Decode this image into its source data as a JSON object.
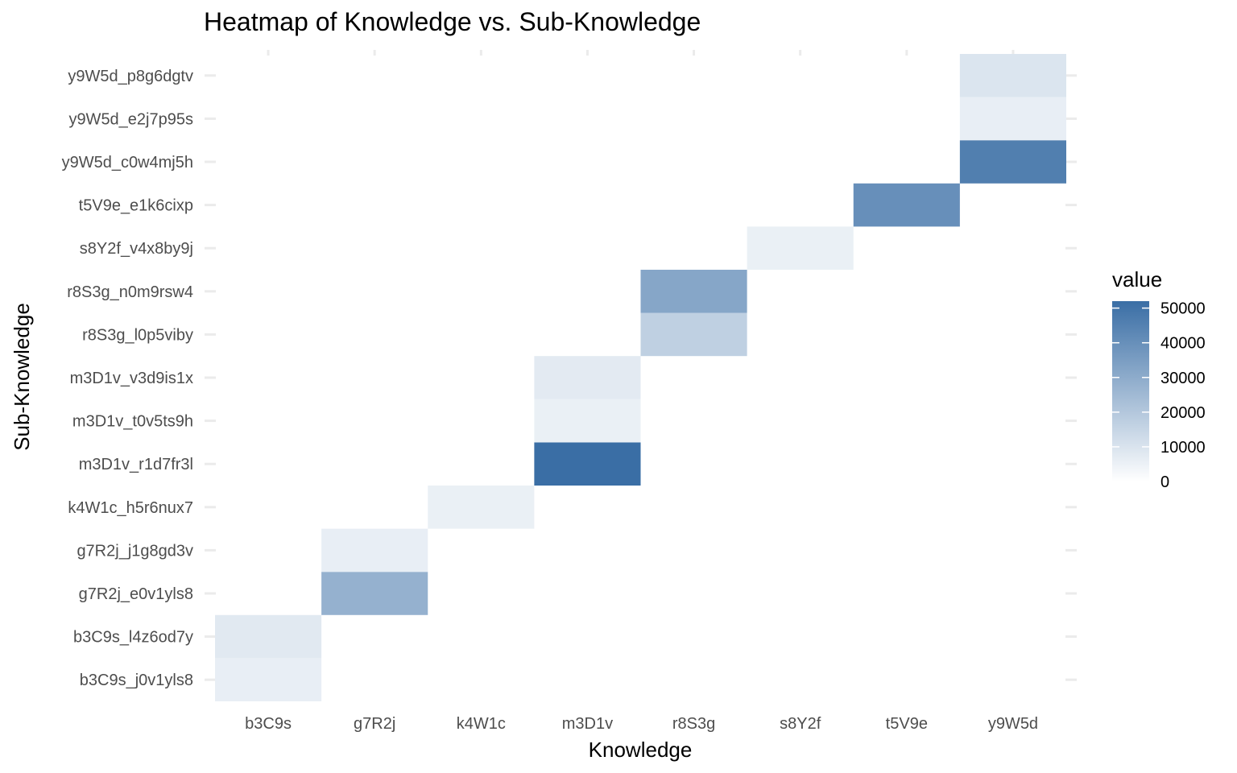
{
  "chart_data": {
    "type": "heatmap",
    "title": "Heatmap of Knowledge vs. Sub-Knowledge",
    "xlabel": "Knowledge",
    "ylabel": "Sub-Knowledge",
    "x_categories": [
      "b3C9s",
      "g7R2j",
      "k4W1c",
      "m3D1v",
      "r8S3g",
      "s8Y2f",
      "t5V9e",
      "y9W5d"
    ],
    "y_categories": [
      "b3C9s_j0v1yls8",
      "b3C9s_l4z6od7y",
      "g7R2j_e0v1yls8",
      "g7R2j_j1g8gd3v",
      "k4W1c_h5r6nux7",
      "m3D1v_r1d7fr3l",
      "m3D1v_t0v5ts9h",
      "m3D1v_v3d9is1x",
      "r8S3g_l0p5viby",
      "r8S3g_n0m9rsw4",
      "s8Y2f_v4x8by9j",
      "t5V9e_e1k6cixp",
      "y9W5d_c0w4mj5h",
      "y9W5d_e2j7p95s",
      "y9W5d_p8g6dgtv"
    ],
    "cells": [
      {
        "x": "b3C9s",
        "y": "b3C9s_j0v1yls8",
        "value": 6000
      },
      {
        "x": "b3C9s",
        "y": "b3C9s_l4z6od7y",
        "value": 8000
      },
      {
        "x": "g7R2j",
        "y": "g7R2j_e0v1yls8",
        "value": 28000
      },
      {
        "x": "g7R2j",
        "y": "g7R2j_j1g8gd3v",
        "value": 6000
      },
      {
        "x": "k4W1c",
        "y": "k4W1c_h5r6nux7",
        "value": 5500
      },
      {
        "x": "m3D1v",
        "y": "m3D1v_r1d7fr3l",
        "value": 52000
      },
      {
        "x": "m3D1v",
        "y": "m3D1v_t0v5ts9h",
        "value": 5500
      },
      {
        "x": "m3D1v",
        "y": "m3D1v_v3d9is1x",
        "value": 7500
      },
      {
        "x": "r8S3g",
        "y": "r8S3g_l0p5viby",
        "value": 17000
      },
      {
        "x": "r8S3g",
        "y": "r8S3g_n0m9rsw4",
        "value": 32000
      },
      {
        "x": "s8Y2f",
        "y": "s8Y2f_v4x8by9j",
        "value": 5500
      },
      {
        "x": "t5V9e",
        "y": "t5V9e_e1k6cixp",
        "value": 40000
      },
      {
        "x": "y9W5d",
        "y": "y9W5d_c0w4mj5h",
        "value": 46000
      },
      {
        "x": "y9W5d",
        "y": "y9W5d_e2j7p95s",
        "value": 6000
      },
      {
        "x": "y9W5d",
        "y": "y9W5d_p8g6dgtv",
        "value": 9500
      }
    ],
    "legend": {
      "title": "value",
      "min": 0,
      "max": 52000,
      "ticks": [
        {
          "value": 0,
          "label": "0"
        },
        {
          "value": 10000,
          "label": "10000"
        },
        {
          "value": 20000,
          "label": "20000"
        },
        {
          "value": 30000,
          "label": "30000"
        },
        {
          "value": 40000,
          "label": "40000"
        },
        {
          "value": 50000,
          "label": "50000"
        }
      ],
      "position": "right"
    },
    "colors": {
      "low": "#ffffff",
      "high": "#3a6ea5",
      "grid": "#ebebeb"
    }
  }
}
